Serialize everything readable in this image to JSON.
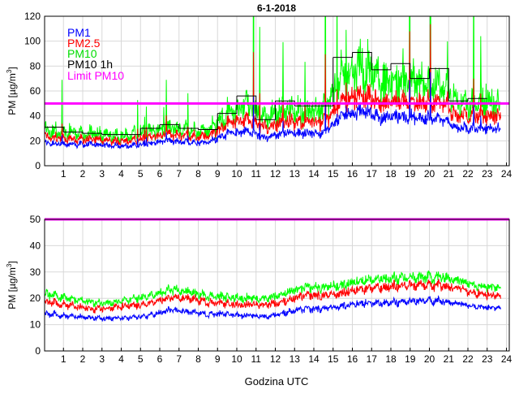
{
  "chart_data": [
    {
      "type": "line",
      "title": "6-1-2018",
      "xlabel": "",
      "ylabel": "PM [µg/m³]",
      "ylabel_main": "PM [µg/m",
      "ylabel_sup": "3",
      "ylabel_end": "]",
      "xlim": [
        0,
        24
      ],
      "ylim": [
        0,
        120
      ],
      "xticks": [
        "1",
        "2",
        "3",
        "4",
        "5",
        "6",
        "7",
        "8",
        "9",
        "10",
        "11",
        "12",
        "13",
        "14",
        "15",
        "16",
        "17",
        "18",
        "19",
        "20",
        "21",
        "22",
        "23",
        "24"
      ],
      "yticks": [
        "0",
        "20",
        "40",
        "60",
        "80",
        "100",
        "120"
      ],
      "grid": true,
      "legend_position": "top-left",
      "legend": [
        "PM1",
        "PM2.5",
        "PM10",
        "PM10 1h",
        "Limit PM10"
      ],
      "colors": {
        "PM1": "#0000ff",
        "PM2.5": "#ff0000",
        "PM10": "#00ff00",
        "PM10 1h": "#000000",
        "Limit PM10": "#ff00ff"
      },
      "limit": 50,
      "data_end_hour": 23.7,
      "series_hourly_mean": {
        "PM1": [
          18,
          17,
          17,
          16,
          16,
          18,
          20,
          19,
          19,
          25,
          28,
          22,
          27,
          26,
          26,
          40,
          45,
          38,
          40,
          38,
          38,
          30,
          30,
          30
        ],
        "PM2.5": [
          23,
          21,
          21,
          20,
          20,
          23,
          25,
          24,
          24,
          33,
          38,
          30,
          36,
          35,
          35,
          52,
          58,
          50,
          52,
          50,
          52,
          40,
          40,
          40
        ],
        "PM10": [
          28,
          26,
          25,
          24,
          24,
          28,
          30,
          29,
          28,
          40,
          50,
          36,
          46,
          44,
          44,
          72,
          80,
          68,
          70,
          66,
          66,
          50,
          50,
          50
        ]
      },
      "pm10_1h": [
        31,
        27,
        26,
        25,
        25,
        30,
        33,
        30,
        29,
        42,
        56,
        37,
        52,
        48,
        48,
        87,
        91,
        77,
        82,
        70,
        78,
        52,
        54,
        null
      ]
    },
    {
      "type": "line",
      "title": "",
      "xlabel": "Godzina UTC",
      "ylabel": "PM [µg/m³]",
      "ylabel_main": "PM [µg/m",
      "ylabel_sup": "3",
      "ylabel_end": "]",
      "xlim": [
        0,
        24
      ],
      "ylim": [
        0,
        50
      ],
      "xticks": [
        "1",
        "2",
        "3",
        "4",
        "5",
        "6",
        "7",
        "8",
        "9",
        "10",
        "11",
        "12",
        "13",
        "14",
        "15",
        "16",
        "17",
        "18",
        "19",
        "20",
        "21",
        "22",
        "23",
        "24"
      ],
      "yticks": [
        "0",
        "10",
        "20",
        "30",
        "40",
        "50"
      ],
      "grid": true,
      "limit": 50,
      "data_end_hour": 23.7,
      "series_hourly_mean": {
        "PM1": [
          14,
          13,
          12.5,
          12.5,
          12.5,
          13.5,
          15.5,
          15,
          14,
          14,
          13.5,
          13,
          14.5,
          16,
          16,
          17,
          18.5,
          18,
          18.5,
          19,
          19,
          18,
          17,
          16.5
        ],
        "PM2.5": [
          18.5,
          17,
          16,
          16.5,
          17,
          18,
          20,
          20,
          18.5,
          18,
          17.5,
          17.5,
          19,
          21,
          21,
          22,
          24,
          24,
          24.5,
          25,
          25,
          24,
          22,
          21
        ],
        "PM10": [
          21.5,
          19.5,
          18.5,
          18.5,
          19.5,
          21,
          23,
          22.5,
          21,
          20.5,
          20,
          20,
          22,
          24,
          24,
          25,
          27,
          27,
          27.5,
          28,
          28,
          27,
          25,
          24
        ]
      }
    }
  ]
}
